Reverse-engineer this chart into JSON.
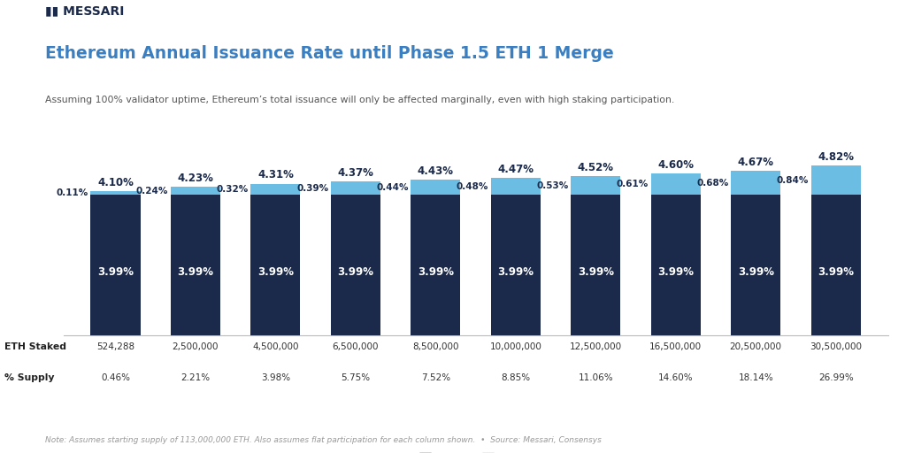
{
  "title": "Ethereum Annual Issuance Rate until Phase 1.5 ETH 1 Merge",
  "subtitle": "Assuming 100% validator uptime, Ethereum’s total issuance will only be affected marginally, even with high staking participation.",
  "note": "Note: Assumes starting supply of 113,000,000 ETH. Also assumes flat participation for each column shown.  •  Source: Messari, Consensys",
  "categories": [
    "524,288",
    "2,500,000",
    "4,500,000",
    "6,500,000",
    "8,500,000",
    "10,000,000",
    "12,500,000",
    "16,500,000",
    "20,500,000",
    "30,500,000"
  ],
  "pct_supply": [
    "0.46%",
    "2.21%",
    "3.98%",
    "5.75%",
    "7.52%",
    "8.85%",
    "11.06%",
    "14.60%",
    "18.14%",
    "26.99%"
  ],
  "eth1_values": [
    3.99,
    3.99,
    3.99,
    3.99,
    3.99,
    3.99,
    3.99,
    3.99,
    3.99,
    3.99
  ],
  "eth2_values": [
    0.11,
    0.24,
    0.32,
    0.39,
    0.44,
    0.48,
    0.53,
    0.61,
    0.68,
    0.84
  ],
  "total_labels": [
    "4.10%",
    "4.23%",
    "4.31%",
    "4.37%",
    "4.43%",
    "4.47%",
    "4.52%",
    "4.60%",
    "4.67%",
    "4.82%"
  ],
  "eth1_labels": [
    "3.99%",
    "3.99%",
    "3.99%",
    "3.99%",
    "3.99%",
    "3.99%",
    "3.99%",
    "3.99%",
    "3.99%",
    "3.99%"
  ],
  "eth2_labels": [
    "0.11%",
    "0.24%",
    "0.32%",
    "0.39%",
    "0.44%",
    "0.48%",
    "0.53%",
    "0.61%",
    "0.68%",
    "0.84%"
  ],
  "eth1_color": "#1b2a4a",
  "eth2_color": "#6bbde3",
  "background_color": "#ffffff",
  "title_color": "#3a7fc1",
  "subtitle_color": "#555555",
  "bar_label_color_eth1": "#ffffff",
  "bar_label_color_eth2": "#1b2a4a",
  "total_label_color": "#1b2a4a",
  "note_color": "#999999",
  "logo_color": "#1b2a4a",
  "ylim": [
    0,
    5.8
  ]
}
